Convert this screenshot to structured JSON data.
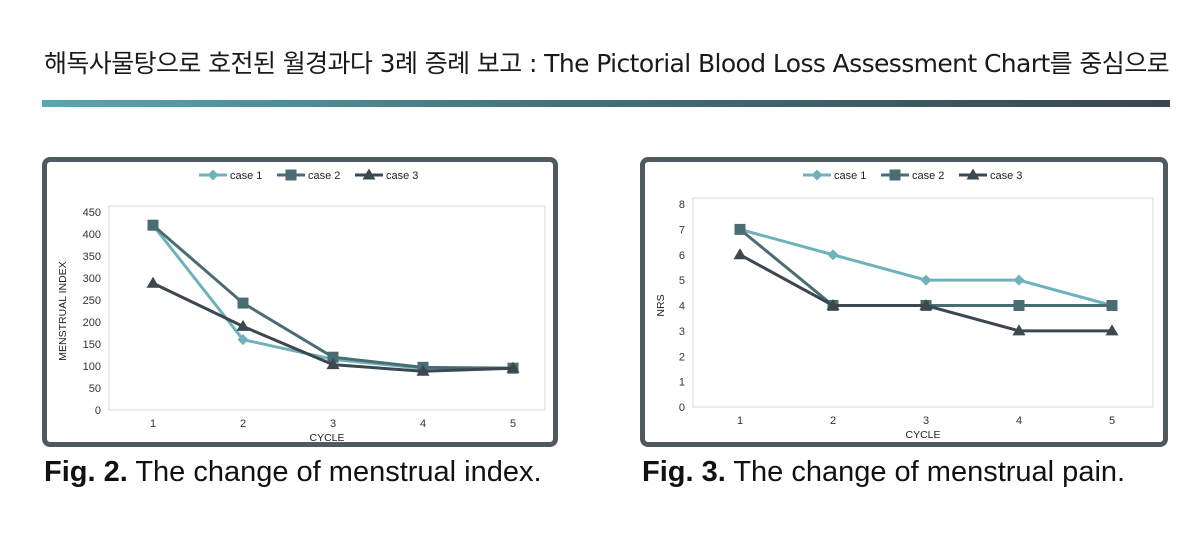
{
  "page": {
    "title": "해독사물탕으로 호전된 월경과다 3례 증례 보고 : The Pictorial Blood Loss Assessment Chart를 중심으로"
  },
  "figures": [
    {
      "label": "Fig. 2.",
      "text": " The change of menstrual index."
    },
    {
      "label": "Fig. 3.",
      "text": " The change of menstrual pain."
    }
  ],
  "colors": {
    "case1": "#6fb2bb",
    "case2": "#4a6d74",
    "case3": "#3c4750",
    "frame": "#4e5a60"
  },
  "chart_data": [
    {
      "type": "line",
      "title": "",
      "xlabel": "CYCLE",
      "ylabel": "MENSTRUAL INDEX",
      "categories": [
        "1",
        "2",
        "3",
        "4",
        "5"
      ],
      "ylim": [
        0,
        450
      ],
      "yticks": [
        "0",
        "50",
        "100",
        "150",
        "200",
        "250",
        "300",
        "350",
        "400",
        "450"
      ],
      "legend": "top",
      "series": [
        {
          "name": "case 1",
          "marker": "diamond",
          "values": [
            420,
            160,
            115,
            95,
            95
          ]
        },
        {
          "name": "case 2",
          "marker": "square",
          "values": [
            420,
            243,
            120,
            97,
            95
          ]
        },
        {
          "name": "case 3",
          "marker": "triangle",
          "values": [
            288,
            190,
            103,
            88,
            95
          ]
        }
      ]
    },
    {
      "type": "line",
      "title": "",
      "xlabel": "CYCLE",
      "ylabel": "NRS",
      "categories": [
        "1",
        "2",
        "3",
        "4",
        "5"
      ],
      "ylim": [
        0,
        8
      ],
      "yticks": [
        "0",
        "1",
        "2",
        "3",
        "4",
        "5",
        "6",
        "7",
        "8"
      ],
      "legend": "top",
      "series": [
        {
          "name": "case 1",
          "marker": "diamond",
          "values": [
            7,
            6,
            5,
            5,
            4
          ]
        },
        {
          "name": "case 2",
          "marker": "square",
          "values": [
            7,
            4,
            4,
            4,
            4
          ]
        },
        {
          "name": "case 3",
          "marker": "triangle",
          "values": [
            6,
            4,
            4,
            3,
            3
          ]
        }
      ]
    }
  ]
}
